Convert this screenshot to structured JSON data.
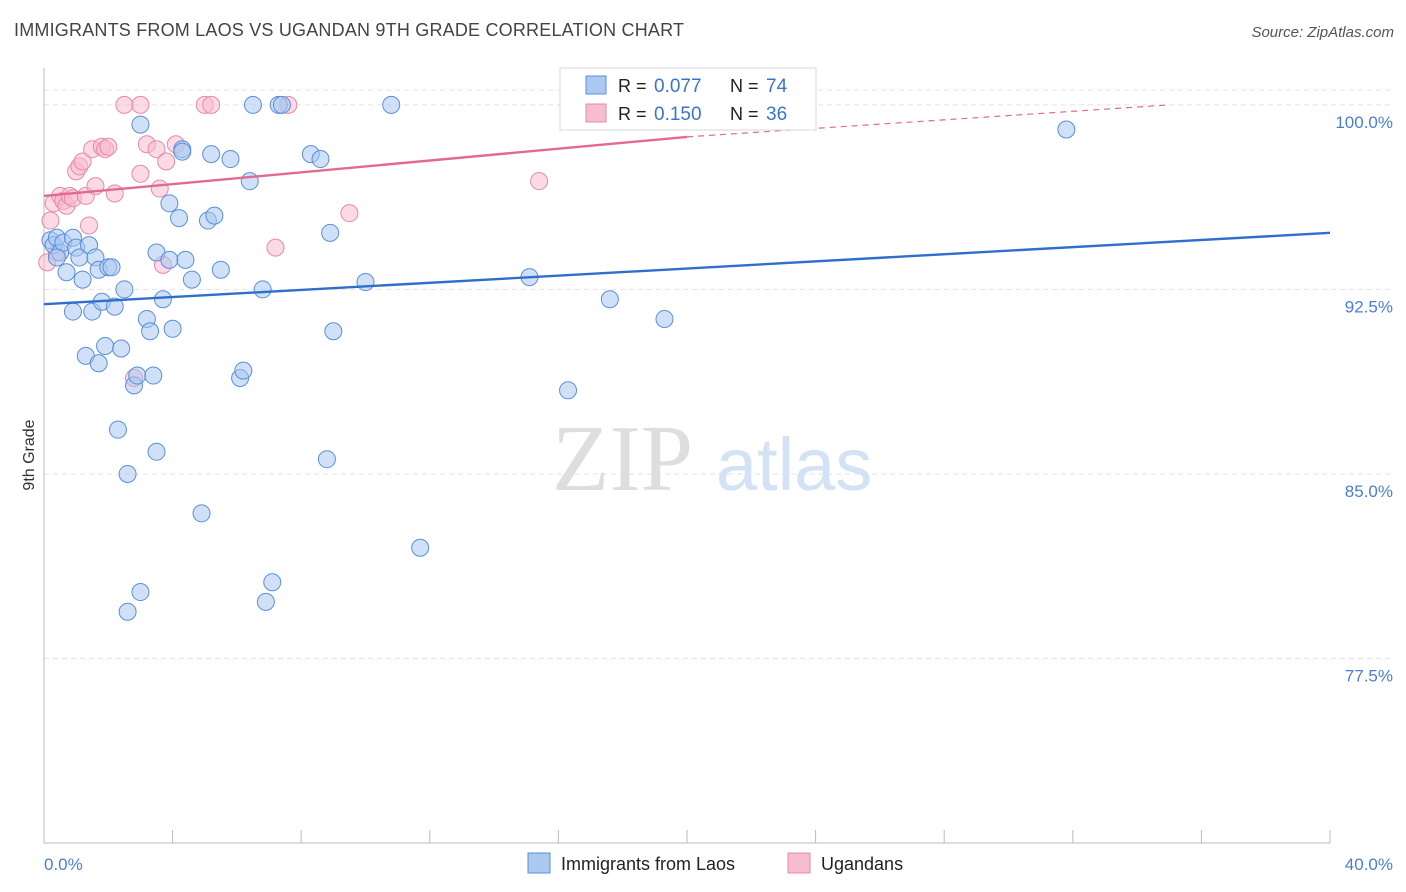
{
  "chart_data": {
    "type": "scatter",
    "title": "IMMIGRANTS FROM LAOS VS UGANDAN 9TH GRADE CORRELATION CHART",
    "source": "Source: ZipAtlas.com",
    "xlabel": "",
    "ylabel": "9th Grade",
    "xlim": [
      0,
      40
    ],
    "ylim": [
      70,
      101.5
    ],
    "x_tick_labels": [
      "0.0%",
      "40.0%"
    ],
    "y_ticks": [
      77.5,
      85.0,
      92.5,
      100.0
    ],
    "y_tick_labels": [
      "77.5%",
      "85.0%",
      "92.5%",
      "100.0%"
    ],
    "watermark": {
      "zip": "ZIP",
      "atlas": "atlas"
    },
    "legend": {
      "r_label": "R =",
      "n_label": "N =",
      "entries": [
        {
          "r": "0.077",
          "n": "74"
        },
        {
          "r": "0.150",
          "n": "36"
        }
      ]
    },
    "colors": {
      "blue_fill": "#aac8f0",
      "blue_stroke": "#5a8fd8",
      "blue_line": "#2f6fcc",
      "pink_fill": "#f8bcd0",
      "pink_stroke": "#e58aaa",
      "pink_line": "#e26a92"
    },
    "series": [
      {
        "name": "Immigrants from Laos",
        "trend": {
          "x": [
            0,
            40
          ],
          "y": [
            91.9,
            94.8
          ]
        },
        "points": [
          [
            0.2,
            94.5
          ],
          [
            0.3,
            94.3
          ],
          [
            0.4,
            94.6
          ],
          [
            0.5,
            94.0
          ],
          [
            0.6,
            94.4
          ],
          [
            0.7,
            93.2
          ],
          [
            0.9,
            94.6
          ],
          [
            0.9,
            91.6
          ],
          [
            1.0,
            94.2
          ],
          [
            1.1,
            93.8
          ],
          [
            1.2,
            92.9
          ],
          [
            1.3,
            89.8
          ],
          [
            1.4,
            94.3
          ],
          [
            1.5,
            91.6
          ],
          [
            1.6,
            93.8
          ],
          [
            1.7,
            93.3
          ],
          [
            1.7,
            89.5
          ],
          [
            1.8,
            92.0
          ],
          [
            1.9,
            90.2
          ],
          [
            2.0,
            93.4
          ],
          [
            2.1,
            93.4
          ],
          [
            2.2,
            91.8
          ],
          [
            2.3,
            86.8
          ],
          [
            2.4,
            90.1
          ],
          [
            2.5,
            92.5
          ],
          [
            2.6,
            85.0
          ],
          [
            2.8,
            88.6
          ],
          [
            2.9,
            89.0
          ],
          [
            3.0,
            99.2
          ],
          [
            3.0,
            80.2
          ],
          [
            3.2,
            91.3
          ],
          [
            3.3,
            90.8
          ],
          [
            3.4,
            89.0
          ],
          [
            3.5,
            94.0
          ],
          [
            3.5,
            85.9
          ],
          [
            3.7,
            92.1
          ],
          [
            3.9,
            96.0
          ],
          [
            3.9,
            93.7
          ],
          [
            4.0,
            90.9
          ],
          [
            4.2,
            95.4
          ],
          [
            4.3,
            98.2
          ],
          [
            4.4,
            93.7
          ],
          [
            4.6,
            92.9
          ],
          [
            4.9,
            83.4
          ],
          [
            5.1,
            95.3
          ],
          [
            5.2,
            98.0
          ],
          [
            5.3,
            95.5
          ],
          [
            5.5,
            93.3
          ],
          [
            5.8,
            97.8
          ],
          [
            6.1,
            88.9
          ],
          [
            6.2,
            89.2
          ],
          [
            6.4,
            96.9
          ],
          [
            6.8,
            92.5
          ],
          [
            6.9,
            79.8
          ],
          [
            7.1,
            80.6
          ],
          [
            7.3,
            100.0
          ],
          [
            7.4,
            100.0
          ],
          [
            8.3,
            98.0
          ],
          [
            8.6,
            97.8
          ],
          [
            8.8,
            85.6
          ],
          [
            8.9,
            94.8
          ],
          [
            9.0,
            90.8
          ],
          [
            10.0,
            92.8
          ],
          [
            10.8,
            100.0
          ],
          [
            11.7,
            82.0
          ],
          [
            15.1,
            93.0
          ],
          [
            16.3,
            88.4
          ],
          [
            17.6,
            92.1
          ],
          [
            19.3,
            91.3
          ],
          [
            31.8,
            99.0
          ],
          [
            2.6,
            79.4
          ],
          [
            4.3,
            98.1
          ],
          [
            0.4,
            93.8
          ],
          [
            6.5,
            100.0
          ]
        ]
      },
      {
        "name": "Ugandans",
        "trend": {
          "x": [
            0,
            20
          ],
          "y": [
            96.3,
            98.7
          ],
          "dashed_x": [
            20,
            35
          ],
          "dashed_y": [
            98.7,
            100.0
          ]
        },
        "points": [
          [
            0.1,
            93.6
          ],
          [
            0.2,
            95.3
          ],
          [
            0.3,
            96.0
          ],
          [
            0.4,
            94.0
          ],
          [
            0.5,
            96.3
          ],
          [
            0.6,
            96.1
          ],
          [
            0.7,
            95.9
          ],
          [
            0.8,
            96.3
          ],
          [
            0.9,
            96.2
          ],
          [
            1.0,
            97.3
          ],
          [
            1.1,
            97.5
          ],
          [
            1.2,
            97.7
          ],
          [
            1.3,
            96.3
          ],
          [
            1.4,
            95.1
          ],
          [
            1.5,
            98.2
          ],
          [
            1.6,
            96.7
          ],
          [
            1.8,
            98.3
          ],
          [
            1.9,
            98.2
          ],
          [
            2.0,
            98.3
          ],
          [
            2.2,
            96.4
          ],
          [
            2.5,
            100.0
          ],
          [
            2.8,
            88.9
          ],
          [
            3.0,
            97.2
          ],
          [
            3.2,
            98.4
          ],
          [
            3.5,
            98.2
          ],
          [
            3.6,
            96.6
          ],
          [
            3.7,
            93.5
          ],
          [
            3.8,
            97.7
          ],
          [
            4.1,
            98.4
          ],
          [
            5.0,
            100.0
          ],
          [
            5.2,
            100.0
          ],
          [
            7.2,
            94.2
          ],
          [
            7.6,
            100.0
          ],
          [
            9.5,
            95.6
          ],
          [
            15.4,
            96.9
          ],
          [
            3.0,
            100.0
          ]
        ]
      }
    ]
  }
}
